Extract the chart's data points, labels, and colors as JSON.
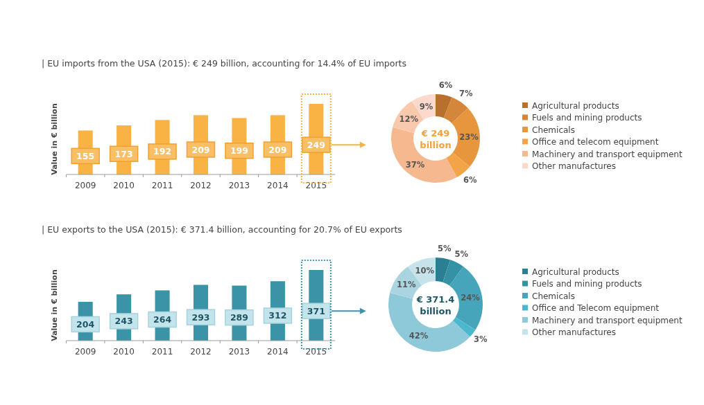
{
  "chart_data": [
    {
      "type": "bar",
      "title": "| EU imports from the USA (2015): € 249 billion, accounting for 14.4% of EU imports",
      "ylabel": "Value in € billion",
      "categories": [
        "2009",
        "2010",
        "2011",
        "2012",
        "2013",
        "2014",
        "2015"
      ],
      "values": [
        155,
        173,
        192,
        209,
        199,
        209,
        249
      ],
      "color": "#f9b244",
      "data_labels": true
    },
    {
      "type": "donut",
      "categories": [
        "Agricultural products",
        "Fuels and mining products",
        "Chemicals",
        "Office and telecom equipment",
        "Machinery and transport equipment",
        null,
        "Other manufactures"
      ],
      "values": [
        6,
        7,
        23,
        6,
        37,
        12,
        9
      ],
      "colors": [
        "#b8702e",
        "#d4873a",
        "#e8963e",
        "#f4a448",
        "#f6b88e",
        "#f9c9ae",
        "#fbd9cc"
      ],
      "value_labels": [
        "6%",
        "7%",
        "23%",
        "6%",
        "37%",
        "12%",
        "9%"
      ],
      "legend": "right",
      "annotations": [
        "€ 249 billion"
      ]
    },
    {
      "type": "bar",
      "title": "| EU exports to the USA (2015): € 371.4 billion, accounting for 20.7% of EU exports",
      "ylabel": "Value in € billion",
      "categories": [
        "2009",
        "2010",
        "2011",
        "2012",
        "2013",
        "2014",
        "2015"
      ],
      "values": [
        204,
        243,
        264,
        293,
        289,
        312,
        371
      ],
      "color": "#3a93a6",
      "data_labels": true
    },
    {
      "type": "donut",
      "categories": [
        "Agricultural products",
        "Fuels and mining products",
        "Chemicals",
        "Office and Telecom equipment",
        "Machinery and transport equipment",
        null,
        "Other manufactures"
      ],
      "values": [
        5,
        5,
        24,
        3,
        42,
        11,
        10
      ],
      "colors": [
        "#2a7f92",
        "#3592a6",
        "#46a5bb",
        "#4cb8cf",
        "#8ec9d9",
        "#a9d4e0",
        "#c6e2ea"
      ],
      "value_labels": [
        "5%",
        "5%",
        "24%",
        "3%",
        "42%",
        "11%",
        "10%"
      ],
      "legend": "right",
      "annotations": [
        "€ 371.4 billion"
      ]
    }
  ]
}
